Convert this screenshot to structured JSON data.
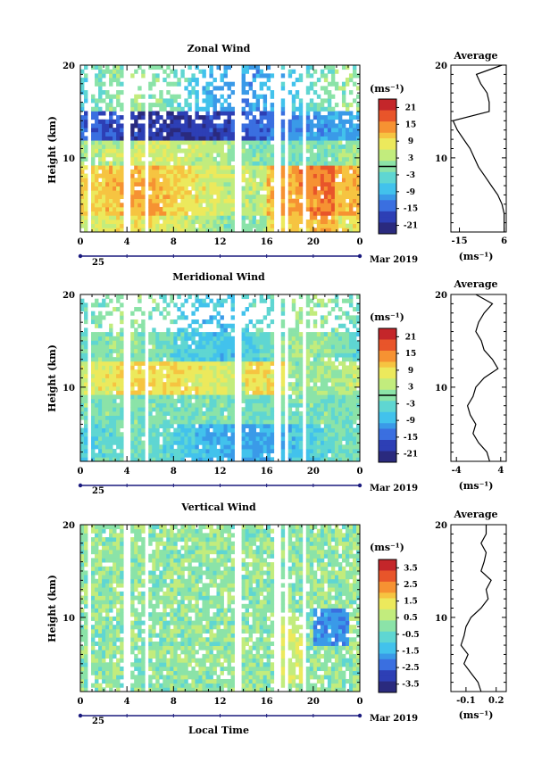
{
  "figure": {
    "xlabel": "Local Time",
    "date_label": "Mar 2019",
    "day_label": "25"
  },
  "chart_data": [
    {
      "type": "heatmap",
      "title": "Zonal Wind",
      "ylabel": "Height (km)",
      "xlim": [
        0,
        24
      ],
      "ylim": [
        2,
        20
      ],
      "x_ticks": [
        "0",
        "4",
        "8",
        "12",
        "16",
        "20",
        "0"
      ],
      "y_ticks": [
        "10",
        "20"
      ],
      "colorbar": {
        "unit_label": "(ms⁻¹)",
        "ticks": [
          "21",
          "15",
          "9",
          "3",
          "-3",
          "-9",
          "-15",
          "-21"
        ],
        "range": [
          -24,
          24
        ]
      },
      "average_profile": {
        "title": "Average",
        "x_ticks": [
          "-15",
          "6"
        ],
        "xlim": [
          -19,
          7
        ],
        "unit_label": "(ms⁻¹)",
        "y_ticks": [
          "10",
          "20"
        ],
        "heights": [
          2,
          3,
          4,
          5,
          6,
          7,
          8,
          9,
          10,
          11,
          12,
          13,
          14,
          15,
          16,
          17,
          18,
          19,
          20
        ],
        "values": [
          6,
          6,
          6,
          5,
          3,
          0,
          -3,
          -6,
          -8,
          -10,
          -13,
          -16,
          -18,
          -1,
          -1,
          -2,
          -5,
          -7,
          5
        ]
      }
    },
    {
      "type": "heatmap",
      "title": "Meridional Wind",
      "ylabel": "Height (km)",
      "xlim": [
        0,
        24
      ],
      "ylim": [
        2,
        20
      ],
      "x_ticks": [
        "0",
        "4",
        "8",
        "12",
        "16",
        "20",
        "0"
      ],
      "y_ticks": [
        "10",
        "20"
      ],
      "colorbar": {
        "unit_label": "(ms⁻¹)",
        "ticks": [
          "21",
          "15",
          "9",
          "3",
          "-3",
          "-9",
          "-15",
          "-21"
        ],
        "range": [
          -24,
          24
        ]
      },
      "average_profile": {
        "title": "Average",
        "x_ticks": [
          "-4",
          "4"
        ],
        "xlim": [
          -5,
          5
        ],
        "unit_label": "(ms⁻¹)",
        "y_ticks": [
          "10",
          "20"
        ],
        "heights": [
          2,
          3,
          4,
          5,
          6,
          7,
          8,
          9,
          10,
          11,
          12,
          13,
          14,
          15,
          16,
          17,
          18,
          19,
          20
        ],
        "values": [
          2,
          1.5,
          0,
          -1,
          -0.5,
          -1.5,
          -2,
          -1,
          -0.5,
          1,
          3.5,
          2.5,
          1,
          0.5,
          -0.5,
          0,
          1,
          2.5,
          -0.5
        ]
      }
    },
    {
      "type": "heatmap",
      "title": "Vertical Wind",
      "ylabel": "Height (km)",
      "xlim": [
        0,
        24
      ],
      "ylim": [
        2,
        20
      ],
      "x_ticks": [
        "0",
        "4",
        "8",
        "12",
        "16",
        "20",
        "0"
      ],
      "y_ticks": [
        "10",
        "20"
      ],
      "colorbar": {
        "unit_label": "(ms⁻¹)",
        "ticks": [
          "3.5",
          "2.5",
          "1.5",
          "0.5",
          "-0.5",
          "-1.5",
          "-2.5",
          "-3.5"
        ],
        "range": [
          -4,
          4
        ]
      },
      "average_profile": {
        "title": "Average",
        "x_ticks": [
          "-0.1",
          "0.2"
        ],
        "xlim": [
          -0.25,
          0.3
        ],
        "unit_label": "(ms⁻¹)",
        "y_ticks": [
          "10",
          "20"
        ],
        "heights": [
          2,
          3,
          4,
          5,
          6,
          7,
          8,
          9,
          10,
          11,
          12,
          13,
          14,
          15,
          16,
          17,
          18,
          19,
          20
        ],
        "values": [
          0.05,
          0.02,
          -0.05,
          -0.12,
          -0.08,
          -0.15,
          -0.12,
          -0.1,
          -0.05,
          0.05,
          0.12,
          0.1,
          0.15,
          0.05,
          0.08,
          0.1,
          0.05,
          0.1,
          0.1
        ]
      }
    }
  ]
}
